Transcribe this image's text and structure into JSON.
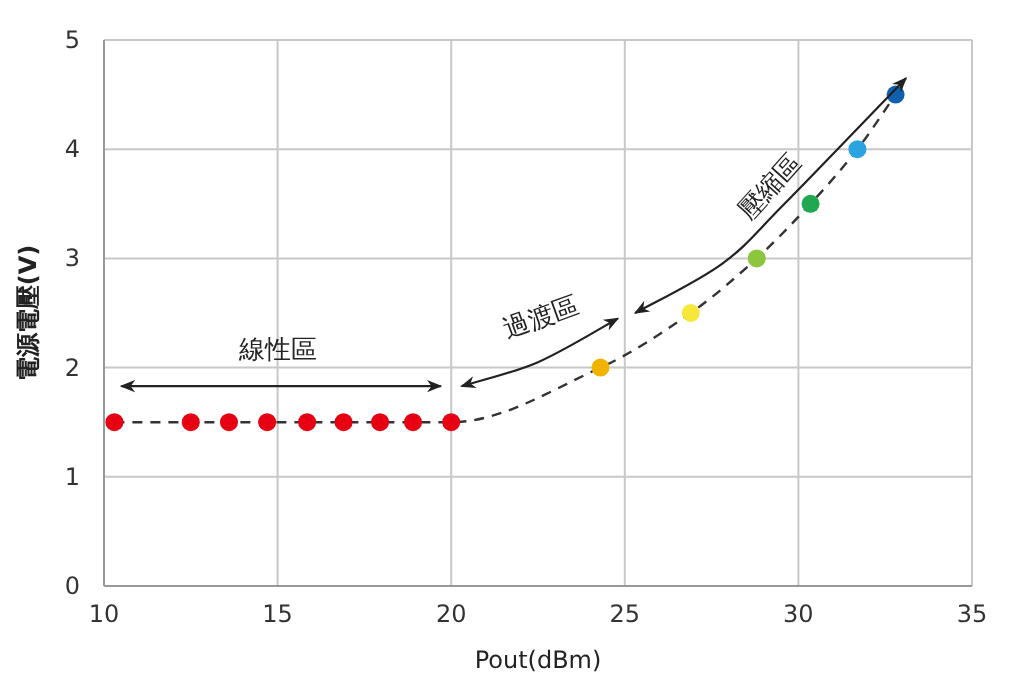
{
  "chart_data": {
    "type": "line",
    "xlabel": "Pout(dBm)",
    "ylabel": "電源電壓(V)",
    "x": [
      10.3,
      12.5,
      13.6,
      14.7,
      15.85,
      16.9,
      17.95,
      18.9,
      20.0,
      24.3,
      26.9,
      28.8,
      30.35,
      31.7,
      32.8
    ],
    "series": [
      {
        "type": "line",
        "color": "#333333",
        "line_style": "dashed",
        "marker": "none",
        "values": [
          1.5,
          1.5,
          1.5,
          1.5,
          1.5,
          1.5,
          1.5,
          1.5,
          1.5,
          2.0,
          2.5,
          3.0,
          3.5,
          4.0,
          4.5
        ]
      },
      {
        "type": "scatter",
        "marker": "circle",
        "colors": [
          "#e60012",
          "#e60012",
          "#e60012",
          "#e60012",
          "#e60012",
          "#e60012",
          "#e60012",
          "#e60012",
          "#e60012",
          "#f0b400",
          "#f5e83a",
          "#8cc63f",
          "#1fa84f",
          "#2aa3e0",
          "#1060b0"
        ],
        "values": [
          1.5,
          1.5,
          1.5,
          1.5,
          1.5,
          1.5,
          1.5,
          1.5,
          1.5,
          2.0,
          2.5,
          3.0,
          3.5,
          4.0,
          4.5
        ]
      }
    ],
    "xlim": [
      10,
      35
    ],
    "ylim": [
      0,
      5
    ],
    "xticks": [
      10,
      15,
      20,
      25,
      30,
      35
    ],
    "yticks": [
      0,
      1,
      2,
      3,
      4,
      5
    ],
    "grid": true,
    "annotations": [
      "線性區",
      "過渡區",
      "壓縮區"
    ]
  }
}
